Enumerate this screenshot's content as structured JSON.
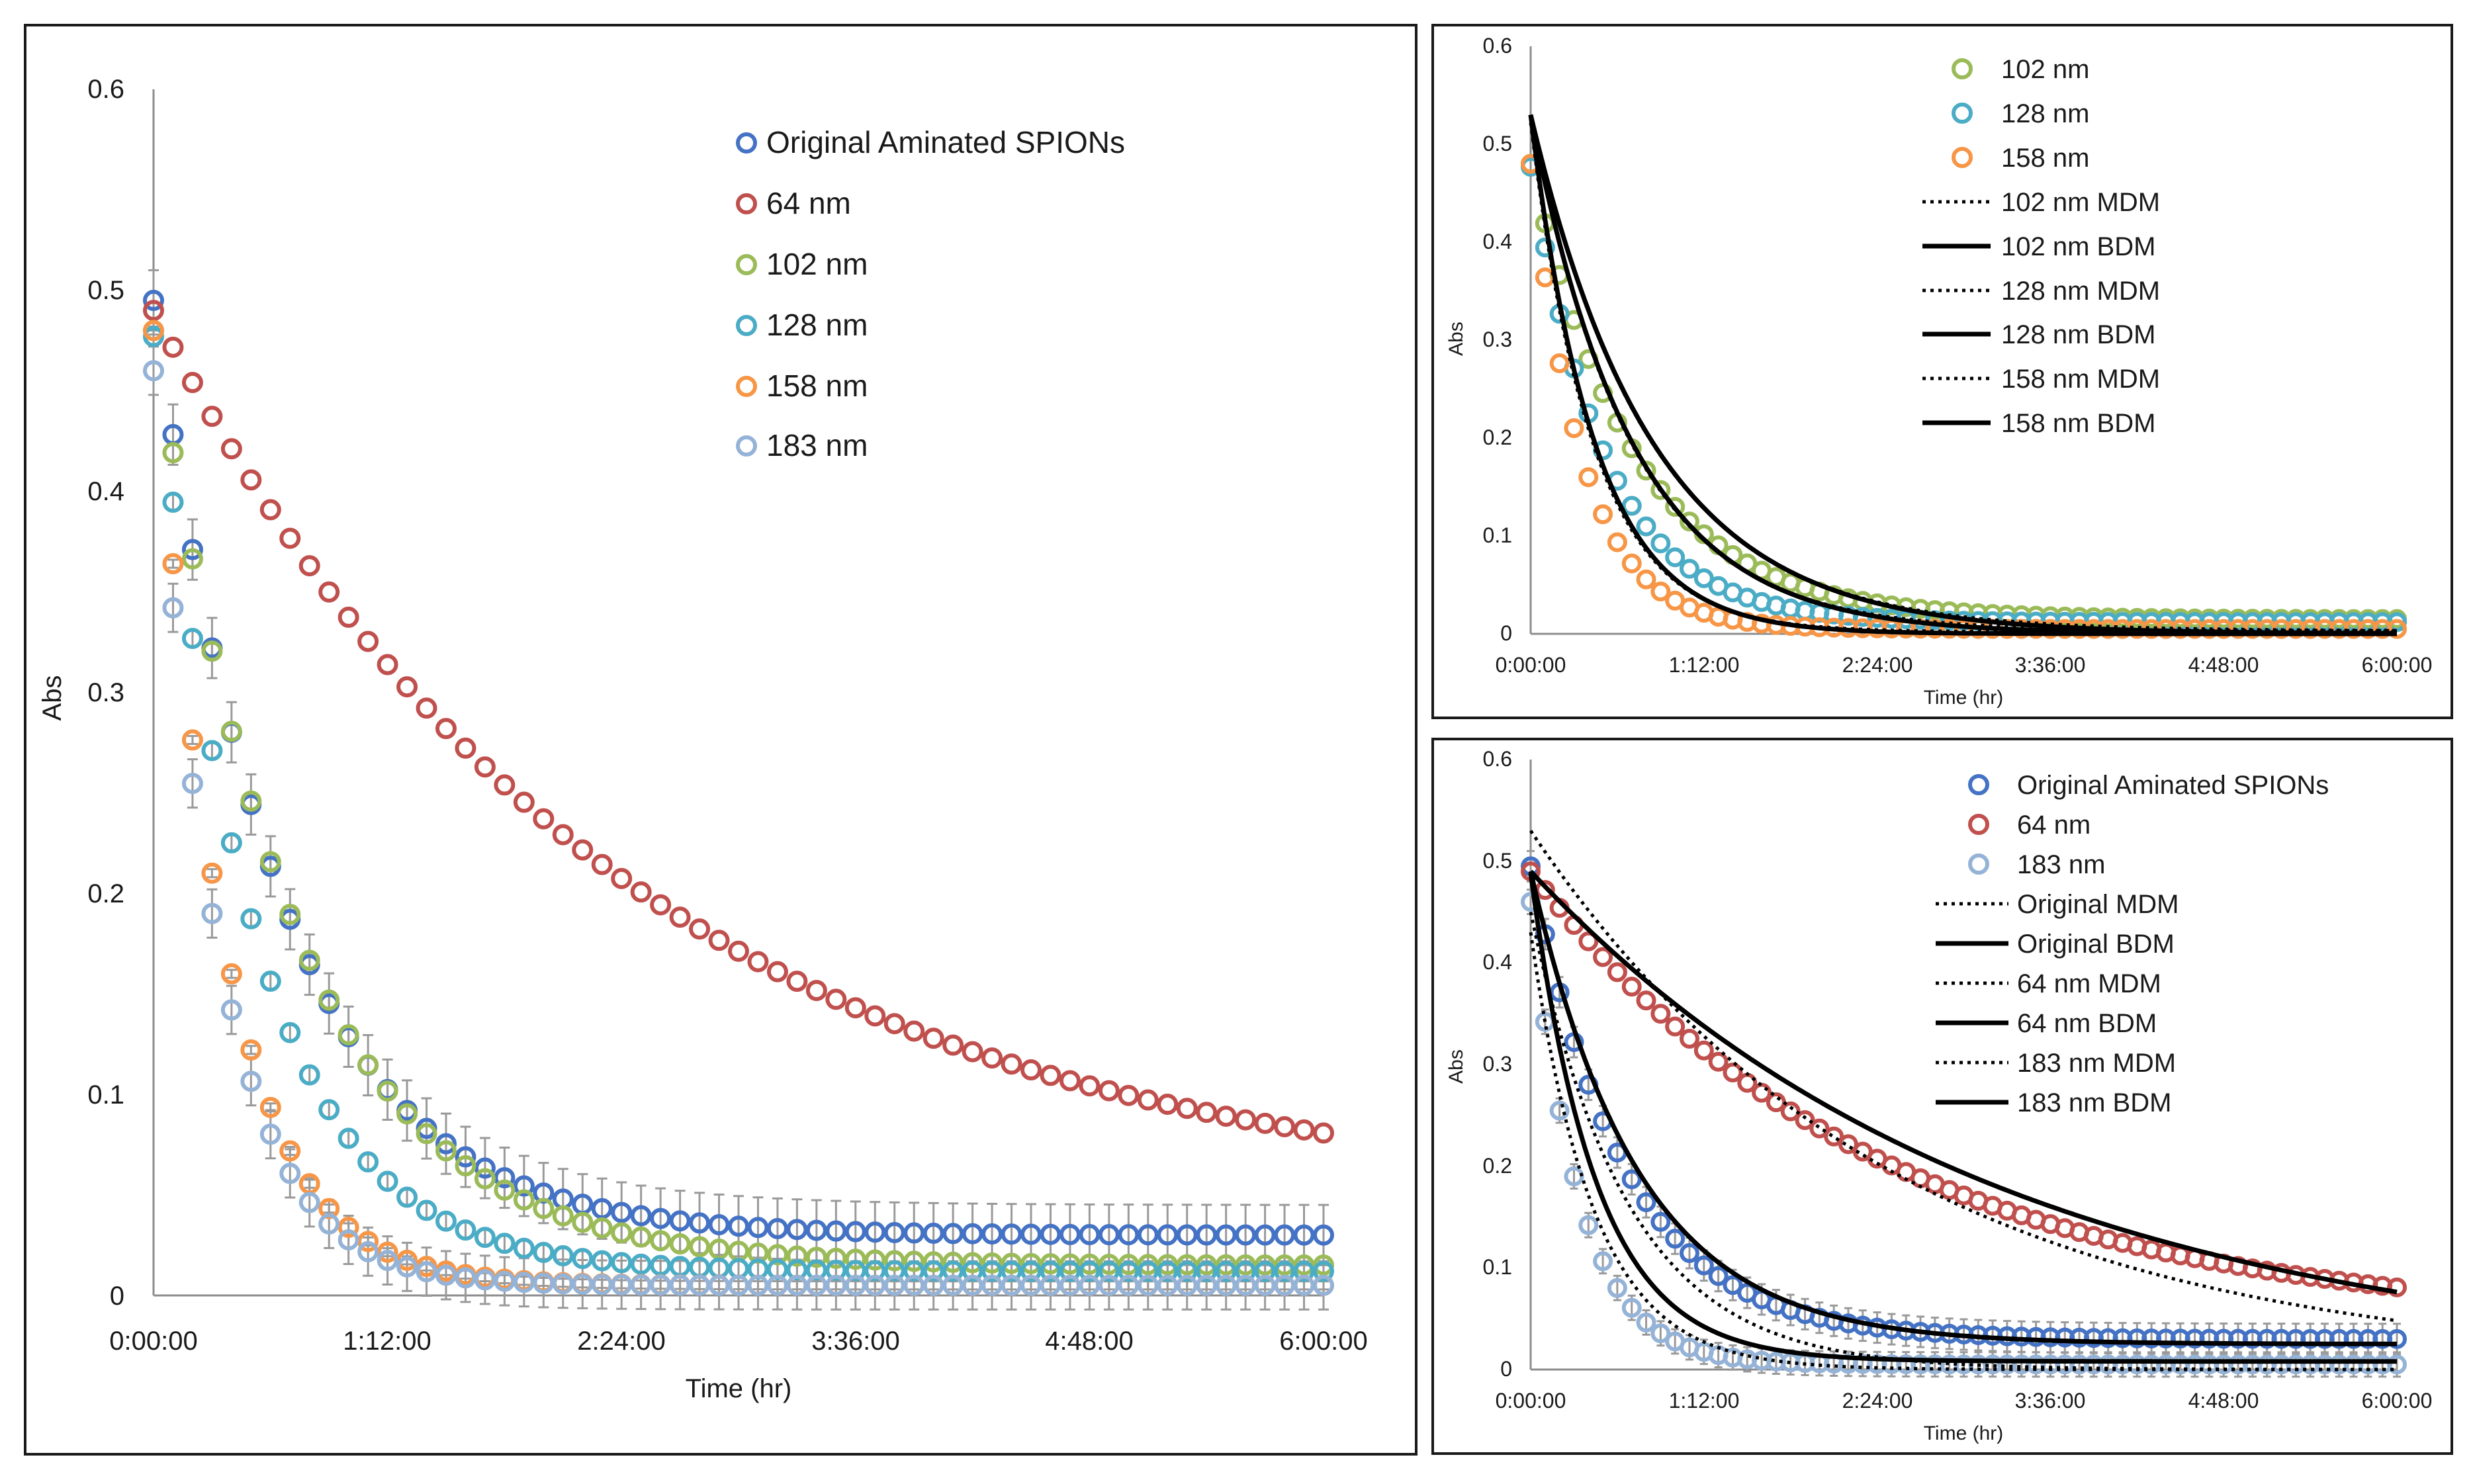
{
  "chart_data": [
    {
      "id": "main",
      "type": "scatter",
      "title": "",
      "xlabel": "Time (hr)",
      "ylabel": "Abs",
      "xlim": [
        0,
        6
      ],
      "ylim": [
        0,
        0.6
      ],
      "x_tick_labels": [
        "0:00:00",
        "1:12:00",
        "2:24:00",
        "3:36:00",
        "4:48:00",
        "6:00:00"
      ],
      "x_tick_values": [
        0,
        1.2,
        2.4,
        3.6,
        4.8,
        6.0
      ],
      "y_tick_labels": [
        "0",
        "0.1",
        "0.2",
        "0.3",
        "0.4",
        "0.5",
        "0.6"
      ],
      "y_tick_values": [
        0,
        0.1,
        0.2,
        0.3,
        0.4,
        0.5,
        0.6
      ],
      "sample_interval_hr": 0.1,
      "legend_position": "top-right",
      "series": [
        {
          "name": "Original Aminated SPIONs",
          "color": "#4472c4",
          "model": {
            "c": 0.03,
            "a": 0.465,
            "k": 1.55
          },
          "error_bar": 0.015
        },
        {
          "name": "64 nm",
          "color": "#c0504d",
          "model": {
            "c": 0.045,
            "a": 0.445,
            "k": 0.42
          },
          "error_bar": 0.0
        },
        {
          "name": "102 nm",
          "color": "#9bbb59",
          "model": {
            "c": 0.015,
            "a": 0.465,
            "k": 1.4
          },
          "error_bar": 0.004
        },
        {
          "name": "128 nm",
          "color": "#4bacc6",
          "model": {
            "c": 0.012,
            "a": 0.465,
            "k": 1.95
          },
          "error_bar": 0.004
        },
        {
          "name": "158 nm",
          "color": "#f79646",
          "model": {
            "c": 0.005,
            "a": 0.475,
            "k": 2.8
          },
          "error_bar": 0.002
        },
        {
          "name": "183 nm",
          "color": "#95b3d7",
          "model": {
            "c": 0.005,
            "a": 0.455,
            "k": 3.0
          },
          "error_bar": 0.012
        }
      ]
    },
    {
      "id": "top-right",
      "type": "scatter",
      "title": "",
      "xlabel": "Time (hr)",
      "ylabel": "Abs",
      "xlim": [
        0,
        6
      ],
      "ylim": [
        0,
        0.6
      ],
      "x_tick_labels": [
        "0:00:00",
        "1:12:00",
        "2:24:00",
        "3:36:00",
        "4:48:00",
        "6:00:00"
      ],
      "x_tick_values": [
        0,
        1.2,
        2.4,
        3.6,
        4.8,
        6.0
      ],
      "y_tick_labels": [
        "0",
        "0.1",
        "0.2",
        "0.3",
        "0.4",
        "0.5",
        "0.6"
      ],
      "y_tick_values": [
        0,
        0.1,
        0.2,
        0.3,
        0.4,
        0.5,
        0.6
      ],
      "legend_position": "top-right",
      "series": [
        {
          "name": "102 nm",
          "color": "#9bbb59",
          "model": {
            "c": 0.015,
            "a": 0.465,
            "k": 1.4
          }
        },
        {
          "name": "128 nm",
          "color": "#4bacc6",
          "model": {
            "c": 0.012,
            "a": 0.465,
            "k": 1.95
          }
        },
        {
          "name": "158 nm",
          "color": "#f79646",
          "model": {
            "c": 0.005,
            "a": 0.475,
            "k": 2.8
          }
        }
      ],
      "fits": [
        {
          "name": "102 nm MDM",
          "style": "dotted",
          "model": {
            "c": 0.003,
            "a": 0.527,
            "k": 1.2
          }
        },
        {
          "name": "102 nm BDM",
          "style": "solid",
          "model": {
            "c": 0.0,
            "a": 0.53,
            "k": 1.18
          }
        },
        {
          "name": "128 nm MDM",
          "style": "dotted",
          "model": {
            "c": 0.003,
            "a": 0.527,
            "k": 1.45
          }
        },
        {
          "name": "128 nm BDM",
          "style": "solid",
          "model": {
            "c": 0.0,
            "a": 0.53,
            "k": 1.42
          }
        },
        {
          "name": "158 nm MDM",
          "style": "dotted",
          "model": {
            "c": 0.002,
            "a": 0.52,
            "k": 2.3
          }
        },
        {
          "name": "158 nm BDM",
          "style": "solid",
          "model": {
            "c": 0.0,
            "a": 0.53,
            "k": 2.25
          }
        }
      ]
    },
    {
      "id": "bottom-right",
      "type": "scatter",
      "title": "",
      "xlabel": "Time (hr)",
      "ylabel": "Abs",
      "xlim": [
        0,
        6
      ],
      "ylim": [
        0,
        0.6
      ],
      "x_tick_labels": [
        "0:00:00",
        "1:12:00",
        "2:24:00",
        "3:36:00",
        "4:48:00",
        "6:00:00"
      ],
      "x_tick_values": [
        0,
        1.2,
        2.4,
        3.6,
        4.8,
        6.0
      ],
      "y_tick_labels": [
        "0",
        "0.1",
        "0.2",
        "0.3",
        "0.4",
        "0.5",
        "0.6"
      ],
      "y_tick_values": [
        0,
        0.1,
        0.2,
        0.3,
        0.4,
        0.5,
        0.6
      ],
      "legend_position": "top-right",
      "series": [
        {
          "name": "Original Aminated SPIONs",
          "color": "#4472c4",
          "model": {
            "c": 0.03,
            "a": 0.465,
            "k": 1.55
          },
          "error_bar": 0.015
        },
        {
          "name": "64 nm",
          "color": "#c0504d",
          "model": {
            "c": 0.045,
            "a": 0.445,
            "k": 0.42
          },
          "error_bar": 0.0
        },
        {
          "name": "183 nm",
          "color": "#95b3d7",
          "model": {
            "c": 0.005,
            "a": 0.455,
            "k": 3.0
          },
          "error_bar": 0.012
        }
      ],
      "fits": [
        {
          "name": "Original MDM",
          "style": "dotted",
          "model": {
            "c": 0.0,
            "a": 0.45,
            "k": 1.5
          }
        },
        {
          "name": "Original BDM",
          "style": "solid",
          "model": {
            "c": 0.025,
            "a": 0.465,
            "k": 1.35
          }
        },
        {
          "name": "64 nm MDM",
          "style": "dotted",
          "model": {
            "c": 0.0,
            "a": 0.53,
            "k": 0.4
          }
        },
        {
          "name": "64 nm BDM",
          "style": "solid",
          "model": {
            "c": 0.0,
            "a": 0.49,
            "k": 0.31
          }
        },
        {
          "name": "183 nm MDM",
          "style": "dotted",
          "model": {
            "c": 0.0,
            "a": 0.43,
            "k": 2.3
          }
        },
        {
          "name": "183 nm BDM",
          "style": "solid",
          "model": {
            "c": 0.008,
            "a": 0.48,
            "k": 2.2
          }
        }
      ]
    }
  ]
}
